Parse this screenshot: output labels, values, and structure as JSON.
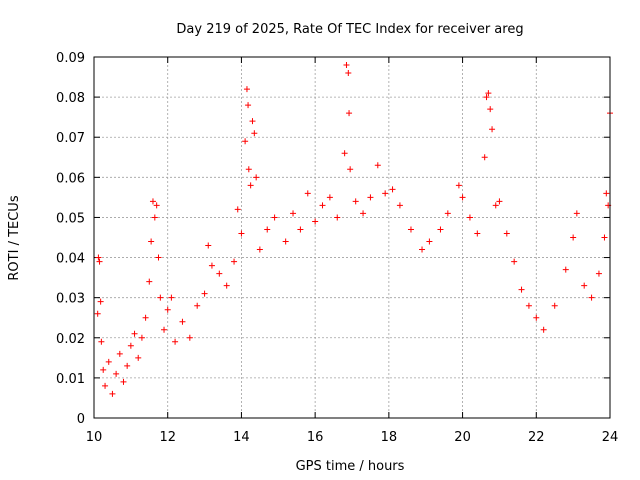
{
  "chart_data": {
    "type": "scatter",
    "title": "Day 219 of 2025, Rate Of TEC Index for receiver areg",
    "xlabel": "GPS time / hours",
    "ylabel": "ROTI / TECUs",
    "xlim": [
      10,
      24
    ],
    "ylim": [
      0,
      0.09
    ],
    "x_ticks": [
      10,
      12,
      14,
      16,
      18,
      20,
      22,
      24
    ],
    "y_ticks": [
      0,
      0.01,
      0.02,
      0.03,
      0.04,
      0.05,
      0.06,
      0.07,
      0.08,
      0.09
    ],
    "x_tick_labels": [
      "10",
      "12",
      "14",
      "16",
      "18",
      "20",
      "22",
      "24"
    ],
    "y_tick_labels": [
      "0",
      "0.01",
      "0.02",
      "0.03",
      "0.04",
      "0.05",
      "0.06",
      "0.07",
      "0.08",
      "0.09"
    ],
    "grid": true,
    "marker": "+",
    "color": "#ff0000",
    "series": [
      {
        "points": [
          [
            10.1,
            0.026
          ],
          [
            10.12,
            0.04
          ],
          [
            10.15,
            0.039
          ],
          [
            10.18,
            0.029
          ],
          [
            10.2,
            0.019
          ],
          [
            10.25,
            0.012
          ],
          [
            10.3,
            0.008
          ],
          [
            10.4,
            0.014
          ],
          [
            10.5,
            0.006
          ],
          [
            10.6,
            0.011
          ],
          [
            10.7,
            0.016
          ],
          [
            10.8,
            0.009
          ],
          [
            10.9,
            0.013
          ],
          [
            11.0,
            0.018
          ],
          [
            11.1,
            0.021
          ],
          [
            11.2,
            0.015
          ],
          [
            11.3,
            0.02
          ],
          [
            11.4,
            0.025
          ],
          [
            11.5,
            0.034
          ],
          [
            11.55,
            0.044
          ],
          [
            11.6,
            0.054
          ],
          [
            11.65,
            0.05
          ],
          [
            11.7,
            0.053
          ],
          [
            11.75,
            0.04
          ],
          [
            11.8,
            0.03
          ],
          [
            11.9,
            0.022
          ],
          [
            12.0,
            0.027
          ],
          [
            12.1,
            0.03
          ],
          [
            12.2,
            0.019
          ],
          [
            12.4,
            0.024
          ],
          [
            12.6,
            0.02
          ],
          [
            12.8,
            0.028
          ],
          [
            13.0,
            0.031
          ],
          [
            13.1,
            0.043
          ],
          [
            13.2,
            0.038
          ],
          [
            13.4,
            0.036
          ],
          [
            13.6,
            0.033
          ],
          [
            13.8,
            0.039
          ],
          [
            13.9,
            0.052
          ],
          [
            14.0,
            0.046
          ],
          [
            14.1,
            0.069
          ],
          [
            14.15,
            0.082
          ],
          [
            14.18,
            0.078
          ],
          [
            14.2,
            0.062
          ],
          [
            14.25,
            0.058
          ],
          [
            14.3,
            0.074
          ],
          [
            14.35,
            0.071
          ],
          [
            14.4,
            0.06
          ],
          [
            14.5,
            0.042
          ],
          [
            14.7,
            0.047
          ],
          [
            14.9,
            0.05
          ],
          [
            15.2,
            0.044
          ],
          [
            15.4,
            0.051
          ],
          [
            15.6,
            0.047
          ],
          [
            15.8,
            0.056
          ],
          [
            16.0,
            0.049
          ],
          [
            16.2,
            0.053
          ],
          [
            16.4,
            0.055
          ],
          [
            16.6,
            0.05
          ],
          [
            16.8,
            0.066
          ],
          [
            16.85,
            0.088
          ],
          [
            16.9,
            0.086
          ],
          [
            16.92,
            0.076
          ],
          [
            16.95,
            0.062
          ],
          [
            17.1,
            0.054
          ],
          [
            17.3,
            0.051
          ],
          [
            17.5,
            0.055
          ],
          [
            17.7,
            0.063
          ],
          [
            17.9,
            0.056
          ],
          [
            18.1,
            0.057
          ],
          [
            18.3,
            0.053
          ],
          [
            18.6,
            0.047
          ],
          [
            18.9,
            0.042
          ],
          [
            19.1,
            0.044
          ],
          [
            19.4,
            0.047
          ],
          [
            19.6,
            0.051
          ],
          [
            19.9,
            0.058
          ],
          [
            20.0,
            0.055
          ],
          [
            20.2,
            0.05
          ],
          [
            20.4,
            0.046
          ],
          [
            20.6,
            0.065
          ],
          [
            20.65,
            0.08
          ],
          [
            20.7,
            0.081
          ],
          [
            20.75,
            0.077
          ],
          [
            20.8,
            0.072
          ],
          [
            20.9,
            0.053
          ],
          [
            21.0,
            0.054
          ],
          [
            21.2,
            0.046
          ],
          [
            21.4,
            0.039
          ],
          [
            21.6,
            0.032
          ],
          [
            21.8,
            0.028
          ],
          [
            22.0,
            0.025
          ],
          [
            22.2,
            0.022
          ],
          [
            22.5,
            0.028
          ],
          [
            22.8,
            0.037
          ],
          [
            23.0,
            0.045
          ],
          [
            23.1,
            0.051
          ],
          [
            23.3,
            0.033
          ],
          [
            23.5,
            0.03
          ],
          [
            23.7,
            0.036
          ],
          [
            23.85,
            0.045
          ],
          [
            23.9,
            0.056
          ],
          [
            23.95,
            0.053
          ],
          [
            24.0,
            0.076
          ]
        ]
      }
    ]
  }
}
